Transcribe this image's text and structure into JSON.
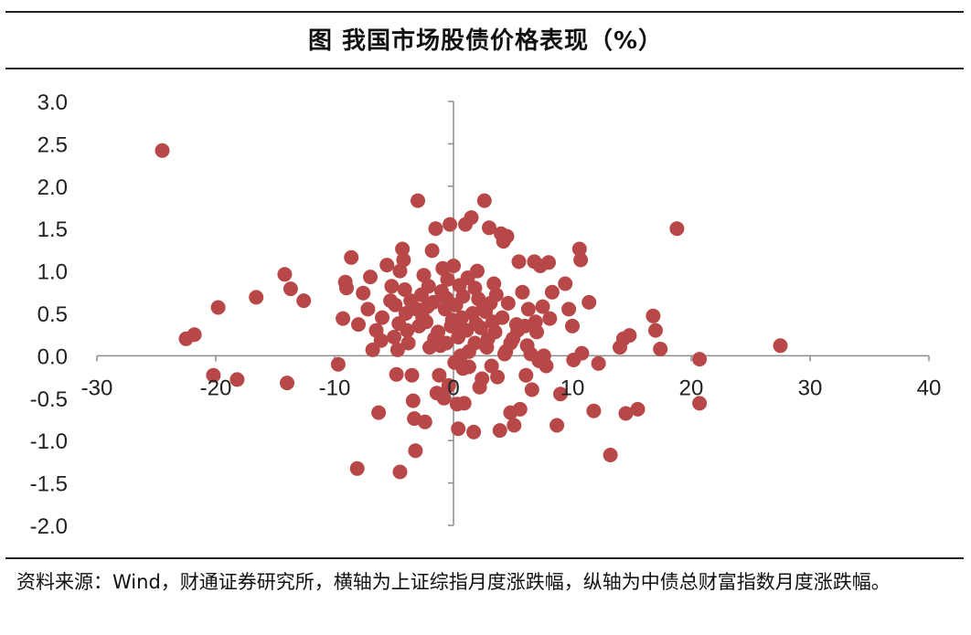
{
  "title": "图  我国市场股债价格表现（%）",
  "source": "资料来源：Wind，财通证券研究所，横轴为上证综指月度涨跌幅，纵轴为中债总财富指数月度涨跌幅。",
  "chart_data": {
    "type": "scatter",
    "title": "图  我国市场股债价格表现（%）",
    "xlabel": "",
    "ylabel": "",
    "xlim": [
      -30,
      40
    ],
    "ylim": [
      -2.0,
      3.0
    ],
    "xticks": [
      -30,
      -20,
      -10,
      0,
      10,
      20,
      30,
      40
    ],
    "yticks": [
      3.0,
      2.5,
      2.0,
      1.5,
      1.0,
      0.5,
      0.0,
      -0.5,
      -1.0,
      -1.5,
      -2.0
    ],
    "xtick_labels": [
      "-30",
      "-20",
      "-10",
      "0",
      "10",
      "20",
      "30",
      "40"
    ],
    "ytick_labels": [
      "3.0",
      "2.5",
      "2.0",
      "1.5",
      "1.0",
      "0.5",
      "0.0",
      "-0.5",
      "-1.0",
      "-1.5",
      "-2.0"
    ],
    "grid": false,
    "marker_color": "#b84848",
    "points": [
      [
        -24.5,
        2.42
      ],
      [
        -22.5,
        0.2
      ],
      [
        -21.8,
        0.25
      ],
      [
        -20.2,
        -0.23
      ],
      [
        -19.8,
        0.57
      ],
      [
        -18.2,
        -0.28
      ],
      [
        -16.6,
        0.69
      ],
      [
        -14.2,
        0.96
      ],
      [
        -13.7,
        0.79
      ],
      [
        -14.0,
        -0.32
      ],
      [
        -12.6,
        0.65
      ],
      [
        -9.7,
        -0.1
      ],
      [
        -9.3,
        0.44
      ],
      [
        -9.0,
        0.8
      ],
      [
        -9.1,
        0.87
      ],
      [
        -8.6,
        1.16
      ],
      [
        -8.0,
        0.37
      ],
      [
        -8.1,
        -1.33
      ],
      [
        -7.6,
        0.74
      ],
      [
        -7.2,
        0.55
      ],
      [
        -7.0,
        0.93
      ],
      [
        -6.8,
        0.07
      ],
      [
        -6.5,
        0.3
      ],
      [
        -6.3,
        -0.67
      ],
      [
        -6.0,
        0.45
      ],
      [
        -5.6,
        1.07
      ],
      [
        -5.2,
        0.82
      ],
      [
        -5.0,
        0.22
      ],
      [
        -4.9,
        0.6
      ],
      [
        -4.7,
        0.07
      ],
      [
        -4.8,
        -0.22
      ],
      [
        -4.6,
        0.38
      ],
      [
        -4.5,
        1.0
      ],
      [
        -4.3,
        1.26
      ],
      [
        -4.2,
        1.13
      ],
      [
        -4.5,
        -1.37
      ],
      [
        -4.0,
        0.5
      ],
      [
        -3.8,
        0.15
      ],
      [
        -3.6,
        0.65
      ],
      [
        -3.5,
        -0.23
      ],
      [
        -3.4,
        -0.53
      ],
      [
        -3.3,
        -0.74
      ],
      [
        -3.0,
        1.83
      ],
      [
        -3.2,
        -1.12
      ],
      [
        -2.9,
        0.35
      ],
      [
        -2.7,
        0.72
      ],
      [
        -2.5,
        0.95
      ],
      [
        -2.4,
        -0.78
      ],
      [
        -2.3,
        0.4
      ],
      [
        -2.1,
        0.82
      ],
      [
        -2.0,
        0.1
      ],
      [
        -1.8,
        1.24
      ],
      [
        -1.7,
        0.63
      ],
      [
        -1.5,
        1.5
      ],
      [
        -1.4,
        -0.44
      ],
      [
        -1.3,
        0.28
      ],
      [
        -1.2,
        -0.23
      ],
      [
        -1.0,
        0.76
      ],
      [
        -0.9,
        1.03
      ],
      [
        -0.8,
        -0.5
      ],
      [
        -0.7,
        0.55
      ],
      [
        -0.6,
        0.15
      ],
      [
        -0.5,
        0.9
      ],
      [
        -0.4,
        -0.35
      ],
      [
        -0.3,
        1.55
      ],
      [
        -0.2,
        0.35
      ],
      [
        0.0,
        1.06
      ],
      [
        0.1,
        -0.08
      ],
      [
        0.2,
        0.6
      ],
      [
        0.3,
        -0.57
      ],
      [
        0.4,
        0.22
      ],
      [
        0.5,
        0.83
      ],
      [
        0.6,
        0.0
      ],
      [
        0.7,
        0.45
      ],
      [
        0.8,
        -0.15
      ],
      [
        0.9,
        -0.56
      ],
      [
        0.4,
        -0.86
      ],
      [
        1.0,
        1.55
      ],
      [
        1.1,
        0.3
      ],
      [
        1.2,
        0.92
      ],
      [
        1.3,
        -0.13
      ],
      [
        1.5,
        1.63
      ],
      [
        1.6,
        0.5
      ],
      [
        1.7,
        -0.9
      ],
      [
        1.8,
        0.15
      ],
      [
        2.0,
        1.0
      ],
      [
        2.1,
        0.67
      ],
      [
        2.2,
        -0.37
      ],
      [
        2.3,
        0.33
      ],
      [
        2.4,
        -0.27
      ],
      [
        2.6,
        1.83
      ],
      [
        2.7,
        0.52
      ],
      [
        2.8,
        0.1
      ],
      [
        3.0,
        1.51
      ],
      [
        3.1,
        0.62
      ],
      [
        3.2,
        -0.12
      ],
      [
        3.4,
        0.85
      ],
      [
        3.5,
        0.28
      ],
      [
        3.7,
        -0.25
      ],
      [
        3.9,
        -0.88
      ],
      [
        4.0,
        1.44
      ],
      [
        4.1,
        0.45
      ],
      [
        4.2,
        1.35
      ],
      [
        4.3,
        0.02
      ],
      [
        4.5,
        1.41
      ],
      [
        4.6,
        0.62
      ],
      [
        4.8,
        -0.67
      ],
      [
        5.0,
        0.2
      ],
      [
        5.1,
        -0.82
      ],
      [
        5.3,
        0.37
      ],
      [
        5.5,
        1.11
      ],
      [
        5.6,
        -0.63
      ],
      [
        5.8,
        0.75
      ],
      [
        6.0,
        0.35
      ],
      [
        6.1,
        -0.23
      ],
      [
        6.3,
        0.55
      ],
      [
        6.5,
        0.02
      ],
      [
        6.6,
        -0.4
      ],
      [
        6.8,
        1.11
      ],
      [
        7.0,
        0.28
      ],
      [
        7.2,
        -0.06
      ],
      [
        7.3,
        1.06
      ],
      [
        7.5,
        0.58
      ],
      [
        7.6,
        0.0
      ],
      [
        7.8,
        -0.12
      ],
      [
        8.0,
        1.1
      ],
      [
        8.1,
        0.44
      ],
      [
        8.3,
        0.75
      ],
      [
        8.7,
        -0.82
      ],
      [
        9.0,
        -0.45
      ],
      [
        9.4,
        0.85
      ],
      [
        9.7,
        0.55
      ],
      [
        10.0,
        0.35
      ],
      [
        10.1,
        -0.05
      ],
      [
        10.6,
        1.26
      ],
      [
        10.7,
        1.13
      ],
      [
        10.8,
        0.03
      ],
      [
        11.4,
        0.63
      ],
      [
        11.8,
        -0.65
      ],
      [
        12.2,
        -0.09
      ],
      [
        13.2,
        -1.17
      ],
      [
        14.0,
        0.1
      ],
      [
        14.3,
        0.2
      ],
      [
        14.5,
        -0.68
      ],
      [
        14.8,
        0.24
      ],
      [
        15.5,
        -0.63
      ],
      [
        16.8,
        0.47
      ],
      [
        17.0,
        0.3
      ],
      [
        17.4,
        0.08
      ],
      [
        18.8,
        1.5
      ],
      [
        20.7,
        -0.04
      ],
      [
        20.7,
        -0.56
      ],
      [
        27.5,
        0.12
      ],
      [
        -2.2,
        0.58
      ],
      [
        -1.6,
        0.2
      ],
      [
        0.8,
        0.7
      ],
      [
        1.9,
        0.38
      ],
      [
        2.9,
        0.2
      ],
      [
        3.6,
        0.72
      ],
      [
        4.4,
        0.05
      ],
      [
        5.4,
        0.3
      ],
      [
        6.2,
        0.12
      ],
      [
        -3.9,
        0.3
      ],
      [
        -5.3,
        0.65
      ],
      [
        -6.1,
        0.18
      ],
      [
        -0.1,
        0.42
      ],
      [
        1.3,
        0.05
      ],
      [
        2.5,
        0.6
      ],
      [
        -1.1,
        0.12
      ],
      [
        0.5,
        0.3
      ],
      [
        3.3,
        0.4
      ],
      [
        4.8,
        0.15
      ],
      [
        -2.6,
        0.45
      ],
      [
        -0.6,
        0.68
      ],
      [
        1.8,
        0.8
      ],
      [
        -4.1,
        0.78
      ],
      [
        -3.1,
        0.55
      ],
      [
        6.9,
        0.4
      ]
    ]
  }
}
